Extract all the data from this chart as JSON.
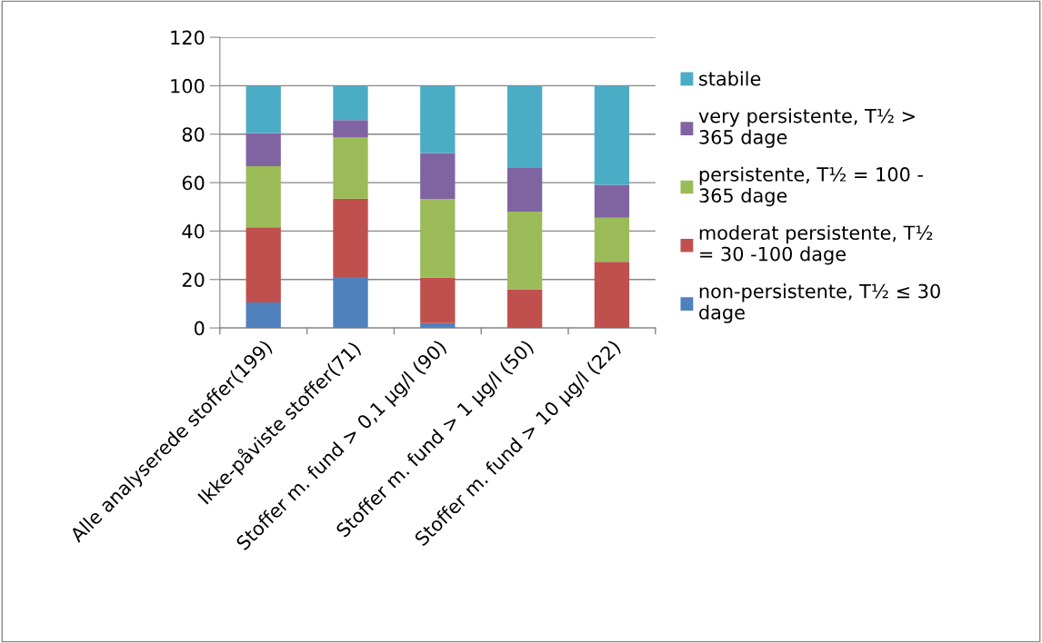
{
  "chart_data": {
    "type": "bar",
    "stacked": true,
    "categories": [
      "Alle analyserede stoffer(199)",
      "Ikke-påviste stoffer(71)",
      "Stoffer m. fund > 0,1 µg/l (90)",
      "Stoffer m. fund > 1 µg/l (50)",
      "Stoffer m. fund > 10 µg/l (22)"
    ],
    "series": [
      {
        "name": "non-persistente, T½ ≤ 30\ndage",
        "color": "#4f81bd",
        "values": [
          10.5,
          21.0,
          2.0,
          0,
          0
        ]
      },
      {
        "name": "moderat persistente, T½\n= 30 -100 dage",
        "color": "#c0504d",
        "values": [
          31.1,
          32.4,
          18.8,
          16,
          27.3
        ]
      },
      {
        "name": "persistente, T½ = 100 -\n365 dage",
        "color": "#9bbb59",
        "values": [
          25.2,
          25.4,
          32.4,
          32,
          18.2
        ]
      },
      {
        "name": "very persistente, T½ >\n365 dage",
        "color": "#8064a2",
        "values": [
          13.7,
          7.0,
          19.0,
          18,
          13.6
        ]
      },
      {
        "name": "stabile",
        "color": "#4bacc6",
        "values": [
          19.5,
          14.2,
          27.8,
          34,
          40.9
        ]
      }
    ],
    "ylim": [
      0,
      120
    ],
    "yticks": [
      0,
      20,
      40,
      60,
      80,
      100,
      120
    ],
    "grid": "y",
    "legend": "right"
  }
}
